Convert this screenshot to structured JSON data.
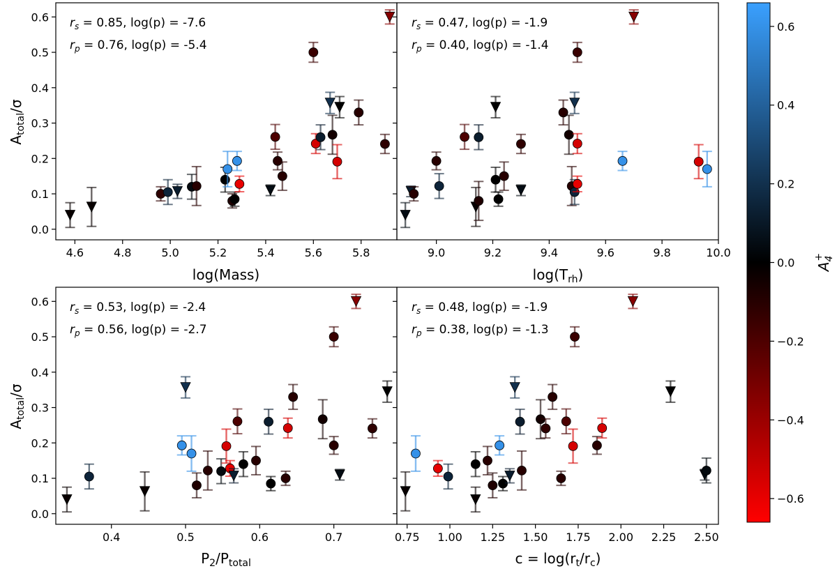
{
  "chart_data": [
    {
      "type": "scatter",
      "panel": "top-left",
      "xlabel": "log(Mass)",
      "ylabel": "A_total/σ",
      "xlim": [
        4.52,
        5.95
      ],
      "ylim": [
        -0.03,
        0.64
      ],
      "xticks": [
        4.6,
        4.8,
        5.0,
        5.2,
        5.4,
        5.6,
        5.8
      ],
      "xtick_labels": [
        "4.6",
        "4.8",
        "5.0",
        "5.2",
        "5.4",
        "5.6",
        "5.8"
      ],
      "yticks": [
        0.0,
        0.1,
        0.2,
        0.3,
        0.4,
        0.5,
        0.6
      ],
      "ytick_labels": [
        "0.0",
        "0.1",
        "0.2",
        "0.3",
        "0.4",
        "0.5",
        "0.6"
      ],
      "stats": {
        "line1_sym": "r",
        "line1_sub": "s",
        "line1_rest": " = 0.85, log(p) = -7.6",
        "line2_sym": "r",
        "line2_sub": "p",
        "line2_rest": " = 0.76, log(p) = -5.4"
      },
      "points": [
        {
          "x": 4.58,
          "y": 0.04,
          "err": 0.035,
          "c": -0.02,
          "m": "v"
        },
        {
          "x": 4.67,
          "y": 0.063,
          "err": 0.055,
          "c": -0.02,
          "m": "v"
        },
        {
          "x": 4.96,
          "y": 0.1,
          "err": 0.02,
          "c": -0.12,
          "m": "o"
        },
        {
          "x": 4.99,
          "y": 0.105,
          "err": 0.035,
          "c": 0.15,
          "m": "o"
        },
        {
          "x": 5.03,
          "y": 0.107,
          "err": 0.02,
          "c": 0.12,
          "m": "v"
        },
        {
          "x": 5.09,
          "y": 0.12,
          "err": 0.035,
          "c": 0.04,
          "m": "o"
        },
        {
          "x": 5.11,
          "y": 0.122,
          "err": 0.055,
          "c": -0.1,
          "m": "o"
        },
        {
          "x": 5.23,
          "y": 0.14,
          "err": 0.035,
          "c": 0.0,
          "m": "o"
        },
        {
          "x": 5.24,
          "y": 0.17,
          "err": 0.05,
          "c": 0.6,
          "m": "o"
        },
        {
          "x": 5.26,
          "y": 0.08,
          "err": 0.02,
          "c": -0.08,
          "m": "o"
        },
        {
          "x": 5.27,
          "y": 0.085,
          "err": 0.02,
          "c": 0.0,
          "m": "o"
        },
        {
          "x": 5.28,
          "y": 0.193,
          "err": 0.027,
          "c": 0.6,
          "m": "o"
        },
        {
          "x": 5.29,
          "y": 0.128,
          "err": 0.022,
          "c": -0.6,
          "m": "o"
        },
        {
          "x": 5.42,
          "y": 0.11,
          "err": 0.015,
          "c": 0.05,
          "m": "v"
        },
        {
          "x": 5.44,
          "y": 0.261,
          "err": 0.035,
          "c": -0.2,
          "m": "o"
        },
        {
          "x": 5.45,
          "y": 0.193,
          "err": 0.025,
          "c": -0.1,
          "m": "o"
        },
        {
          "x": 5.47,
          "y": 0.15,
          "err": 0.04,
          "c": -0.1,
          "m": "o"
        },
        {
          "x": 5.6,
          "y": 0.5,
          "err": 0.028,
          "c": -0.15,
          "m": "o"
        },
        {
          "x": 5.61,
          "y": 0.242,
          "err": 0.028,
          "c": -0.55,
          "m": "o"
        },
        {
          "x": 5.63,
          "y": 0.26,
          "err": 0.035,
          "c": 0.12,
          "m": "o"
        },
        {
          "x": 5.67,
          "y": 0.357,
          "err": 0.03,
          "c": 0.2,
          "m": "v"
        },
        {
          "x": 5.68,
          "y": 0.267,
          "err": 0.055,
          "c": -0.05,
          "m": "o"
        },
        {
          "x": 5.7,
          "y": 0.191,
          "err": 0.048,
          "c": -0.55,
          "m": "o"
        },
        {
          "x": 5.71,
          "y": 0.345,
          "err": 0.03,
          "c": 0.0,
          "m": "v"
        },
        {
          "x": 5.79,
          "y": 0.33,
          "err": 0.035,
          "c": -0.1,
          "m": "o"
        },
        {
          "x": 5.9,
          "y": 0.241,
          "err": 0.027,
          "c": -0.12,
          "m": "o"
        },
        {
          "x": 5.92,
          "y": 0.6,
          "err": 0.02,
          "c": -0.35,
          "m": "v"
        }
      ]
    },
    {
      "type": "scatter",
      "panel": "top-right",
      "xlabel": "log(T_rh)",
      "ylabel": "",
      "xlim": [
        8.86,
        10.0
      ],
      "ylim": [
        -0.03,
        0.64
      ],
      "xticks": [
        9.0,
        9.2,
        9.4,
        9.6,
        9.8,
        10.0
      ],
      "xtick_labels": [
        "9.0",
        "9.2",
        "9.4",
        "9.6",
        "9.8",
        "10.0"
      ],
      "yticks": [
        0.0,
        0.1,
        0.2,
        0.3,
        0.4,
        0.5,
        0.6
      ],
      "ytick_labels": [],
      "stats": {
        "line1_sym": "r",
        "line1_sub": "s",
        "line1_rest": " = 0.47, log(p) = -1.9",
        "line2_sym": "r",
        "line2_sub": "p",
        "line2_rest": " = 0.40, log(p) = -1.4"
      },
      "points": [
        {
          "x": 8.89,
          "y": 0.04,
          "err": 0.035,
          "c": 0.05,
          "m": "v"
        },
        {
          "x": 8.91,
          "y": 0.107,
          "err": 0.015,
          "c": 0.12,
          "m": "v"
        },
        {
          "x": 8.92,
          "y": 0.1,
          "err": 0.02,
          "c": -0.1,
          "m": "o"
        },
        {
          "x": 9.0,
          "y": 0.193,
          "err": 0.025,
          "c": -0.1,
          "m": "o"
        },
        {
          "x": 9.01,
          "y": 0.122,
          "err": 0.035,
          "c": 0.15,
          "m": "o"
        },
        {
          "x": 9.1,
          "y": 0.261,
          "err": 0.035,
          "c": -0.2,
          "m": "o"
        },
        {
          "x": 9.14,
          "y": 0.063,
          "err": 0.055,
          "c": -0.02,
          "m": "v"
        },
        {
          "x": 9.15,
          "y": 0.26,
          "err": 0.035,
          "c": 0.12,
          "m": "o"
        },
        {
          "x": 9.15,
          "y": 0.08,
          "err": 0.055,
          "c": -0.08,
          "m": "o"
        },
        {
          "x": 9.21,
          "y": 0.14,
          "err": 0.035,
          "c": 0.0,
          "m": "o"
        },
        {
          "x": 9.21,
          "y": 0.345,
          "err": 0.03,
          "c": 0.0,
          "m": "v"
        },
        {
          "x": 9.22,
          "y": 0.085,
          "err": 0.02,
          "c": 0.0,
          "m": "o"
        },
        {
          "x": 9.24,
          "y": 0.15,
          "err": 0.04,
          "c": -0.1,
          "m": "o"
        },
        {
          "x": 9.3,
          "y": 0.241,
          "err": 0.027,
          "c": -0.12,
          "m": "o"
        },
        {
          "x": 9.3,
          "y": 0.11,
          "err": 0.015,
          "c": 0.05,
          "m": "v"
        },
        {
          "x": 9.45,
          "y": 0.33,
          "err": 0.035,
          "c": -0.1,
          "m": "o"
        },
        {
          "x": 9.47,
          "y": 0.267,
          "err": 0.055,
          "c": -0.05,
          "m": "o"
        },
        {
          "x": 9.48,
          "y": 0.122,
          "err": 0.055,
          "c": -0.1,
          "m": "o"
        },
        {
          "x": 9.49,
          "y": 0.105,
          "err": 0.035,
          "c": 0.15,
          "m": "o"
        },
        {
          "x": 9.49,
          "y": 0.357,
          "err": 0.03,
          "c": 0.2,
          "m": "v"
        },
        {
          "x": 9.5,
          "y": 0.5,
          "err": 0.028,
          "c": -0.15,
          "m": "o"
        },
        {
          "x": 9.5,
          "y": 0.242,
          "err": 0.028,
          "c": -0.55,
          "m": "o"
        },
        {
          "x": 9.5,
          "y": 0.128,
          "err": 0.022,
          "c": -0.6,
          "m": "o"
        },
        {
          "x": 9.66,
          "y": 0.193,
          "err": 0.027,
          "c": 0.6,
          "m": "o"
        },
        {
          "x": 9.7,
          "y": 0.6,
          "err": 0.02,
          "c": -0.35,
          "m": "v"
        },
        {
          "x": 9.93,
          "y": 0.191,
          "err": 0.048,
          "c": -0.55,
          "m": "o"
        },
        {
          "x": 9.96,
          "y": 0.17,
          "err": 0.05,
          "c": 0.6,
          "m": "o"
        }
      ]
    },
    {
      "type": "scatter",
      "panel": "bottom-left",
      "xlabel": "P_2/P_total",
      "ylabel": "A_total/σ",
      "xlim": [
        0.325,
        0.785
      ],
      "ylim": [
        -0.03,
        0.64
      ],
      "xticks": [
        0.4,
        0.5,
        0.6,
        0.7
      ],
      "xtick_labels": [
        "0.4",
        "0.5",
        "0.6",
        "0.7"
      ],
      "yticks": [
        0.0,
        0.1,
        0.2,
        0.3,
        0.4,
        0.5,
        0.6
      ],
      "ytick_labels": [
        "0.0",
        "0.1",
        "0.2",
        "0.3",
        "0.4",
        "0.5",
        "0.6"
      ],
      "stats": {
        "line1_sym": "r",
        "line1_sub": "s",
        "line1_rest": " = 0.53, log(p) = -2.4",
        "line2_sym": "r",
        "line2_sub": "p",
        "line2_rest": " = 0.56, log(p) = -2.7"
      },
      "points": [
        {
          "x": 0.34,
          "y": 0.04,
          "err": 0.035,
          "c": -0.02,
          "m": "v"
        },
        {
          "x": 0.37,
          "y": 0.105,
          "err": 0.035,
          "c": 0.15,
          "m": "o"
        },
        {
          "x": 0.445,
          "y": 0.063,
          "err": 0.055,
          "c": -0.02,
          "m": "v"
        },
        {
          "x": 0.495,
          "y": 0.193,
          "err": 0.027,
          "c": 0.6,
          "m": "o"
        },
        {
          "x": 0.5,
          "y": 0.357,
          "err": 0.03,
          "c": 0.2,
          "m": "v"
        },
        {
          "x": 0.508,
          "y": 0.17,
          "err": 0.05,
          "c": 0.6,
          "m": "o"
        },
        {
          "x": 0.515,
          "y": 0.08,
          "err": 0.035,
          "c": -0.08,
          "m": "o"
        },
        {
          "x": 0.53,
          "y": 0.122,
          "err": 0.055,
          "c": -0.1,
          "m": "o"
        },
        {
          "x": 0.548,
          "y": 0.12,
          "err": 0.035,
          "c": 0.04,
          "m": "o"
        },
        {
          "x": 0.555,
          "y": 0.191,
          "err": 0.048,
          "c": -0.55,
          "m": "o"
        },
        {
          "x": 0.56,
          "y": 0.128,
          "err": 0.022,
          "c": -0.6,
          "m": "o"
        },
        {
          "x": 0.565,
          "y": 0.107,
          "err": 0.02,
          "c": 0.12,
          "m": "v"
        },
        {
          "x": 0.57,
          "y": 0.261,
          "err": 0.035,
          "c": -0.2,
          "m": "o"
        },
        {
          "x": 0.578,
          "y": 0.14,
          "err": 0.035,
          "c": 0.0,
          "m": "o"
        },
        {
          "x": 0.595,
          "y": 0.15,
          "err": 0.04,
          "c": -0.1,
          "m": "o"
        },
        {
          "x": 0.612,
          "y": 0.26,
          "err": 0.035,
          "c": 0.12,
          "m": "o"
        },
        {
          "x": 0.615,
          "y": 0.085,
          "err": 0.02,
          "c": 0.0,
          "m": "o"
        },
        {
          "x": 0.635,
          "y": 0.1,
          "err": 0.02,
          "c": -0.1,
          "m": "o"
        },
        {
          "x": 0.638,
          "y": 0.242,
          "err": 0.028,
          "c": -0.55,
          "m": "o"
        },
        {
          "x": 0.645,
          "y": 0.33,
          "err": 0.035,
          "c": -0.1,
          "m": "o"
        },
        {
          "x": 0.685,
          "y": 0.267,
          "err": 0.055,
          "c": -0.05,
          "m": "o"
        },
        {
          "x": 0.7,
          "y": 0.5,
          "err": 0.028,
          "c": -0.15,
          "m": "o"
        },
        {
          "x": 0.7,
          "y": 0.193,
          "err": 0.025,
          "c": -0.1,
          "m": "o"
        },
        {
          "x": 0.708,
          "y": 0.11,
          "err": 0.015,
          "c": 0.05,
          "m": "v"
        },
        {
          "x": 0.73,
          "y": 0.6,
          "err": 0.02,
          "c": -0.35,
          "m": "v"
        },
        {
          "x": 0.752,
          "y": 0.241,
          "err": 0.027,
          "c": -0.12,
          "m": "o"
        },
        {
          "x": 0.772,
          "y": 0.345,
          "err": 0.03,
          "c": 0.0,
          "m": "v"
        }
      ]
    },
    {
      "type": "scatter",
      "panel": "bottom-right",
      "xlabel": "c = log(r_t/r_c)",
      "ylabel": "",
      "xlim": [
        0.69,
        2.57
      ],
      "ylim": [
        -0.03,
        0.64
      ],
      "xticks": [
        0.75,
        1.0,
        1.25,
        1.5,
        1.75,
        2.0,
        2.25,
        2.5
      ],
      "xtick_labels": [
        "0.75",
        "1.00",
        "1.25",
        "1.50",
        "1.75",
        "2.00",
        "2.25",
        "2.50"
      ],
      "yticks": [
        0.0,
        0.1,
        0.2,
        0.3,
        0.4,
        0.5,
        0.6
      ],
      "ytick_labels": [],
      "stats": {
        "line1_sym": "r",
        "line1_sub": "s",
        "line1_rest": " = 0.48, log(p) = -1.9",
        "line2_sym": "r",
        "line2_sub": "p",
        "line2_rest": " = 0.38, log(p) = -1.3"
      },
      "points": [
        {
          "x": 0.74,
          "y": 0.063,
          "err": 0.055,
          "c": -0.02,
          "m": "v"
        },
        {
          "x": 0.8,
          "y": 0.17,
          "err": 0.05,
          "c": 0.6,
          "m": "o"
        },
        {
          "x": 0.93,
          "y": 0.128,
          "err": 0.022,
          "c": -0.6,
          "m": "o"
        },
        {
          "x": 0.99,
          "y": 0.105,
          "err": 0.035,
          "c": 0.15,
          "m": "o"
        },
        {
          "x": 1.15,
          "y": 0.14,
          "err": 0.035,
          "c": 0.0,
          "m": "o"
        },
        {
          "x": 1.15,
          "y": 0.04,
          "err": 0.035,
          "c": -0.02,
          "m": "v"
        },
        {
          "x": 1.22,
          "y": 0.15,
          "err": 0.04,
          "c": -0.1,
          "m": "o"
        },
        {
          "x": 1.25,
          "y": 0.08,
          "err": 0.035,
          "c": -0.08,
          "m": "o"
        },
        {
          "x": 1.29,
          "y": 0.193,
          "err": 0.027,
          "c": 0.6,
          "m": "o"
        },
        {
          "x": 1.31,
          "y": 0.085,
          "err": 0.02,
          "c": 0.0,
          "m": "o"
        },
        {
          "x": 1.35,
          "y": 0.107,
          "err": 0.02,
          "c": 0.12,
          "m": "v"
        },
        {
          "x": 1.38,
          "y": 0.357,
          "err": 0.03,
          "c": 0.2,
          "m": "v"
        },
        {
          "x": 1.41,
          "y": 0.26,
          "err": 0.035,
          "c": 0.12,
          "m": "o"
        },
        {
          "x": 1.42,
          "y": 0.122,
          "err": 0.055,
          "c": -0.1,
          "m": "o"
        },
        {
          "x": 1.53,
          "y": 0.267,
          "err": 0.055,
          "c": -0.05,
          "m": "o"
        },
        {
          "x": 1.56,
          "y": 0.241,
          "err": 0.027,
          "c": -0.12,
          "m": "o"
        },
        {
          "x": 1.6,
          "y": 0.33,
          "err": 0.035,
          "c": -0.1,
          "m": "o"
        },
        {
          "x": 1.65,
          "y": 0.1,
          "err": 0.02,
          "c": -0.1,
          "m": "o"
        },
        {
          "x": 1.68,
          "y": 0.261,
          "err": 0.035,
          "c": -0.2,
          "m": "o"
        },
        {
          "x": 1.72,
          "y": 0.191,
          "err": 0.048,
          "c": -0.55,
          "m": "o"
        },
        {
          "x": 1.73,
          "y": 0.5,
          "err": 0.028,
          "c": -0.15,
          "m": "o"
        },
        {
          "x": 1.86,
          "y": 0.193,
          "err": 0.025,
          "c": -0.1,
          "m": "o"
        },
        {
          "x": 1.89,
          "y": 0.242,
          "err": 0.028,
          "c": -0.55,
          "m": "o"
        },
        {
          "x": 2.07,
          "y": 0.6,
          "err": 0.02,
          "c": -0.35,
          "m": "v"
        },
        {
          "x": 2.29,
          "y": 0.345,
          "err": 0.03,
          "c": 0.0,
          "m": "v"
        },
        {
          "x": 2.49,
          "y": 0.11,
          "err": 0.015,
          "c": 0.05,
          "m": "v"
        },
        {
          "x": 2.5,
          "y": 0.122,
          "err": 0.035,
          "c": 0.04,
          "m": "o"
        }
      ]
    }
  ],
  "colorbar": {
    "label": "A4+",
    "label_main": "A",
    "label_sub": "4",
    "label_sup": "+",
    "range": [
      -0.66,
      0.66
    ],
    "ticks": [
      -0.6,
      -0.4,
      -0.2,
      0.0,
      0.2,
      0.4,
      0.6
    ],
    "tick_labels": [
      "−0.6",
      "−0.4",
      "−0.2",
      "0.0",
      "0.2",
      "0.4",
      "0.6"
    ],
    "colors": {
      "low": "#ff0000",
      "mid": "#000000",
      "high": "#3aa0ff"
    }
  }
}
